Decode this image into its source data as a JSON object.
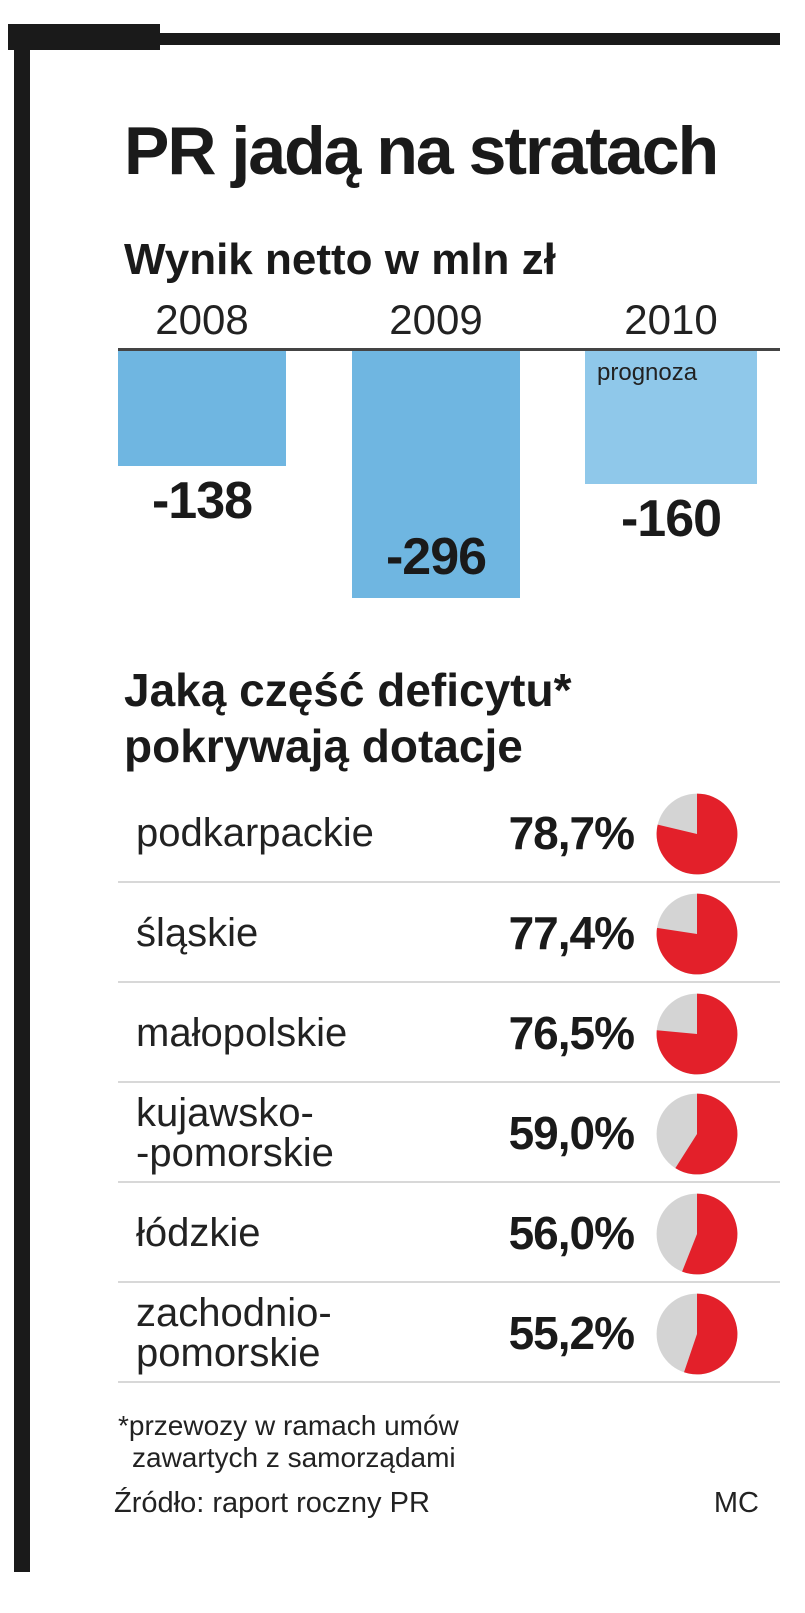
{
  "header": {
    "title": "PR jadą na stratach"
  },
  "chart_data": [
    {
      "type": "bar",
      "title": "Wynik netto w mln zł",
      "categories": [
        "2008",
        "2009",
        "2010"
      ],
      "values": [
        -138,
        -296,
        -160
      ],
      "value_labels": [
        "-138",
        "-296",
        "-160"
      ],
      "notes": [
        "",
        "",
        "prognoza"
      ],
      "colors": [
        "#6fb6e1",
        "#6fb6e1",
        "#8fc8ea"
      ],
      "ylim": [
        -300,
        0
      ]
    },
    {
      "type": "pie",
      "title": "Jaką część deficytu* pokrywają dotacje",
      "accent_color": "#e3202a",
      "remainder_color": "#d4d4d4",
      "rows": [
        {
          "label_lines": [
            "podkarpackie"
          ],
          "value": 78.7,
          "value_label": "78,7%"
        },
        {
          "label_lines": [
            "śląskie"
          ],
          "value": 77.4,
          "value_label": "77,4%"
        },
        {
          "label_lines": [
            "małopolskie"
          ],
          "value": 76.5,
          "value_label": "76,5%"
        },
        {
          "label_lines": [
            "kujawsko-",
            "-pomorskie"
          ],
          "value": 59.0,
          "value_label": "59,0%"
        },
        {
          "label_lines": [
            "łódzkie"
          ],
          "value": 56.0,
          "value_label": "56,0%"
        },
        {
          "label_lines": [
            "zachodnio-",
            "pomorskie"
          ],
          "value": 55.2,
          "value_label": "55,2%"
        }
      ]
    }
  ],
  "footnote": {
    "line1": "*przewozy w ramach umów",
    "line2": "zawartych z samorządami"
  },
  "source": "Źródło: raport roczny PR",
  "author": "MC"
}
